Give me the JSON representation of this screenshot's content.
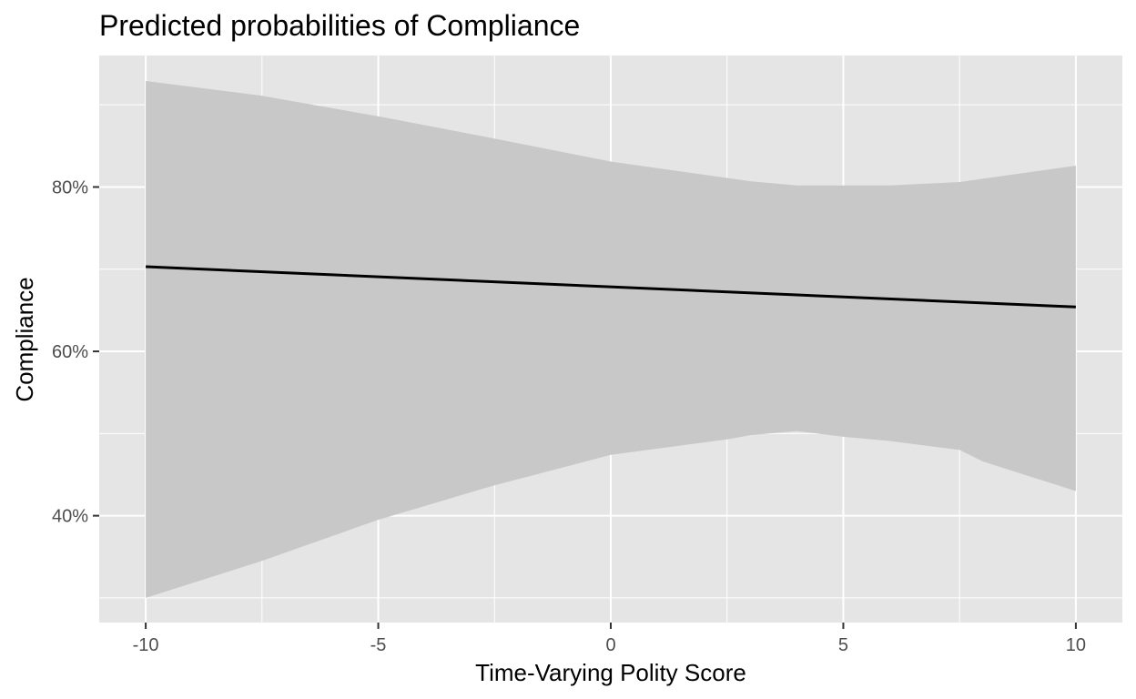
{
  "chart_data": {
    "type": "line",
    "title": "Predicted probabilities of Compliance",
    "xlabel": "Time-Varying Polity Score",
    "ylabel": "Compliance",
    "xlim": [
      -11,
      11
    ],
    "ylim": [
      0.27,
      0.96
    ],
    "grid": true,
    "x_ticks": [
      -10,
      -5,
      0,
      5,
      10
    ],
    "x_tick_labels": [
      "-10",
      "-5",
      "0",
      "5",
      "10"
    ],
    "x_minor_ticks": [
      -7.5,
      -2.5,
      2.5,
      7.5
    ],
    "y_ticks": [
      0.4,
      0.6,
      0.8
    ],
    "y_tick_labels": [
      "40%",
      "60%",
      "80%"
    ],
    "y_minor_ticks": [
      0.3,
      0.5,
      0.7,
      0.9
    ],
    "series": [
      {
        "x": [
          -10,
          10
        ],
        "values": [
          0.703,
          0.654
        ]
      }
    ],
    "confidence_band": {
      "x": [
        -10,
        -7.5,
        -5,
        -2.5,
        0,
        2.5,
        3,
        4,
        5,
        6,
        7.5,
        8,
        10
      ],
      "upper": [
        0.929,
        0.911,
        0.886,
        0.859,
        0.831,
        0.811,
        0.807,
        0.802,
        0.802,
        0.802,
        0.806,
        0.81,
        0.826
      ],
      "lower": [
        0.3,
        0.345,
        0.395,
        0.437,
        0.474,
        0.493,
        0.498,
        0.503,
        0.496,
        0.491,
        0.48,
        0.466,
        0.43
      ]
    },
    "colors": {
      "panel": "#e5e5e5",
      "grid": "#ffffff",
      "ribbon": "#c8c8c8",
      "line": "#000000",
      "tick": "#333333"
    }
  }
}
